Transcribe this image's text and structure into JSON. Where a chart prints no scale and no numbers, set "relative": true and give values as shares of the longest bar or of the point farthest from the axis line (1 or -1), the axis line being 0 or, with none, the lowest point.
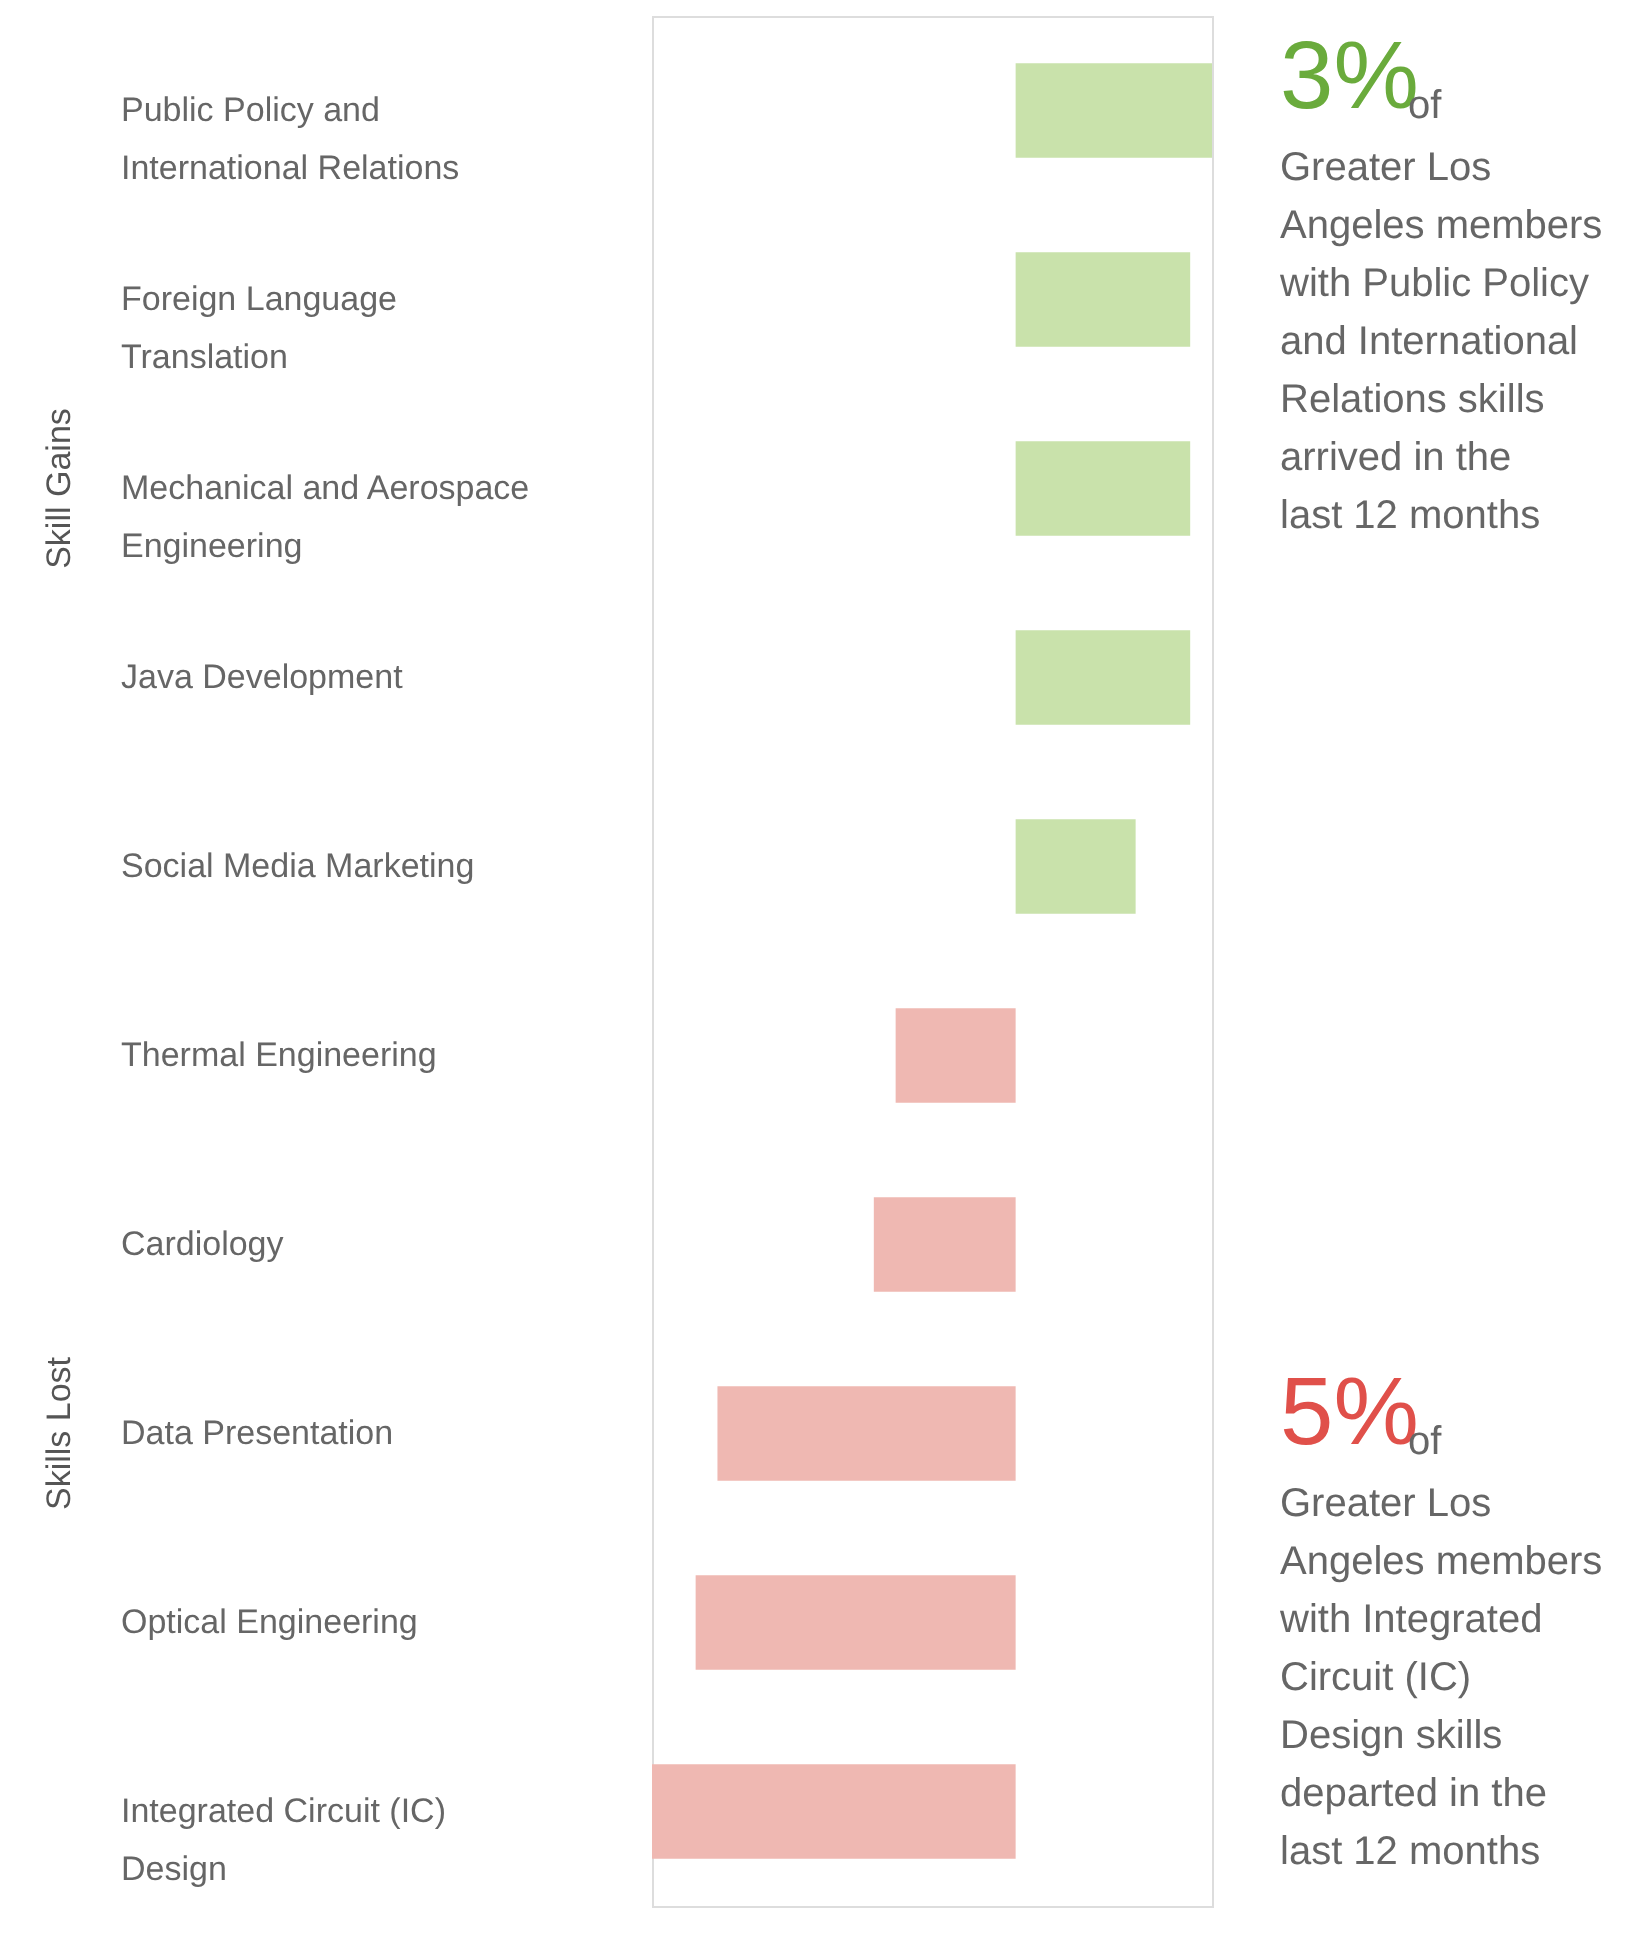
{
  "chart_data": {
    "type": "bar",
    "orientation": "horizontal",
    "relative": true,
    "categories": [
      "Public Policy and International Relations",
      "Foreign Language Translation",
      "Mechanical and Aerospace Engineering",
      "Java Development",
      "Social Media Marketing",
      "Thermal Engineering",
      "Cardiology",
      "Data Presentation",
      "Optical Engineering",
      "Integrated Circuit (IC) Design"
    ],
    "values": [
      0.54,
      0.48,
      0.48,
      0.48,
      0.33,
      -0.33,
      -0.39,
      -0.82,
      -0.88,
      -1
    ],
    "colors": [
      "#c9e2ab",
      "#c9e2ab",
      "#c9e2ab",
      "#c9e2ab",
      "#c9e2ab",
      "#efb8b2",
      "#efb8b2",
      "#efb8b2",
      "#efb8b2",
      "#efb8b2"
    ],
    "annotations": [
      "Skill Gains",
      "Skills Lost",
      "3%",
      "of",
      "Greater Los Angeles members with Public Policy and International Relations skills arrived in the last 12 months",
      "5%",
      "of",
      "Greater Los Angeles members with Integrated Circuit (IC) Design skills departed in the last 12 months"
    ]
  }
}
